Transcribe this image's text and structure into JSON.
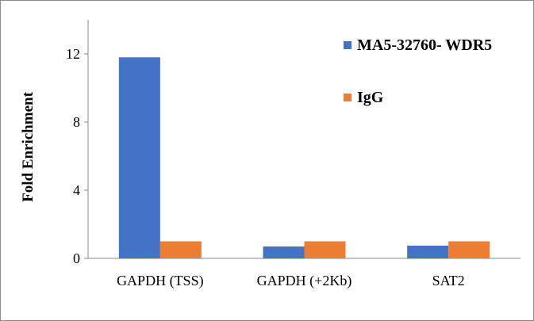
{
  "chart_data": {
    "type": "bar",
    "ylabel": "Fold Enrichment",
    "xlabel": "",
    "ylim": [
      0,
      14
    ],
    "yticks": [
      0,
      4,
      8,
      12
    ],
    "categories": [
      "GAPDH (TSS)",
      "GAPDH (+2Kb)",
      "SAT2"
    ],
    "series": [
      {
        "name": "MA5-32760- WDR5",
        "color": "#4472c4",
        "values": [
          11.8,
          0.7,
          0.75
        ]
      },
      {
        "name": "IgG",
        "color": "#ed7d31",
        "values": [
          1.0,
          1.0,
          1.0
        ]
      }
    ],
    "legend_position": "top-right",
    "grid": false
  }
}
